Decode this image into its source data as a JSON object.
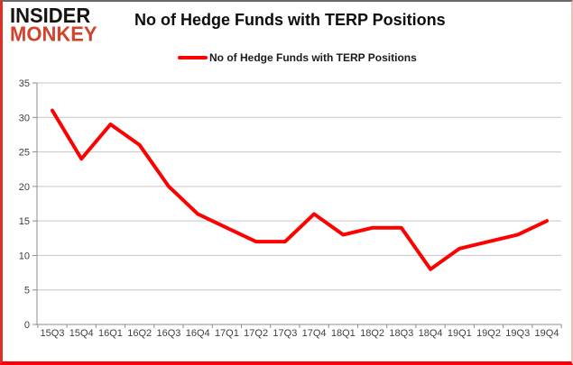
{
  "header": {
    "logo_line1": "INSIDER",
    "logo_line2": "MONKEY",
    "title": "No of Hedge Funds with TERP Positions"
  },
  "legend": {
    "label": "No of Hedge Funds with TERP Positions"
  },
  "colors": {
    "line": "#fe0000",
    "logo_accent": "#d0432c",
    "grid": "#c6c6c6",
    "axis": "#8c8c8c",
    "tick_text": "#3f3f3f"
  },
  "chart_data": {
    "type": "line",
    "title": "No of Hedge Funds with TERP Positions",
    "categories": [
      "15Q3",
      "15Q4",
      "16Q1",
      "16Q2",
      "16Q3",
      "16Q4",
      "17Q1",
      "17Q2",
      "17Q3",
      "17Q4",
      "18Q1",
      "18Q2",
      "18Q3",
      "18Q4",
      "19Q1",
      "19Q2",
      "19Q3",
      "19Q4"
    ],
    "series": [
      {
        "name": "No of Hedge Funds with TERP Positions",
        "values": [
          31,
          24,
          29,
          26,
          20,
          16,
          14,
          12,
          12,
          16,
          13,
          14,
          14,
          8,
          11,
          12,
          13,
          15
        ]
      }
    ],
    "xlabel": "",
    "ylabel": "",
    "ylim": [
      0,
      35
    ],
    "yticks": [
      0,
      5,
      10,
      15,
      20,
      25,
      30,
      35
    ],
    "grid": true,
    "legend_position": "top-center"
  }
}
